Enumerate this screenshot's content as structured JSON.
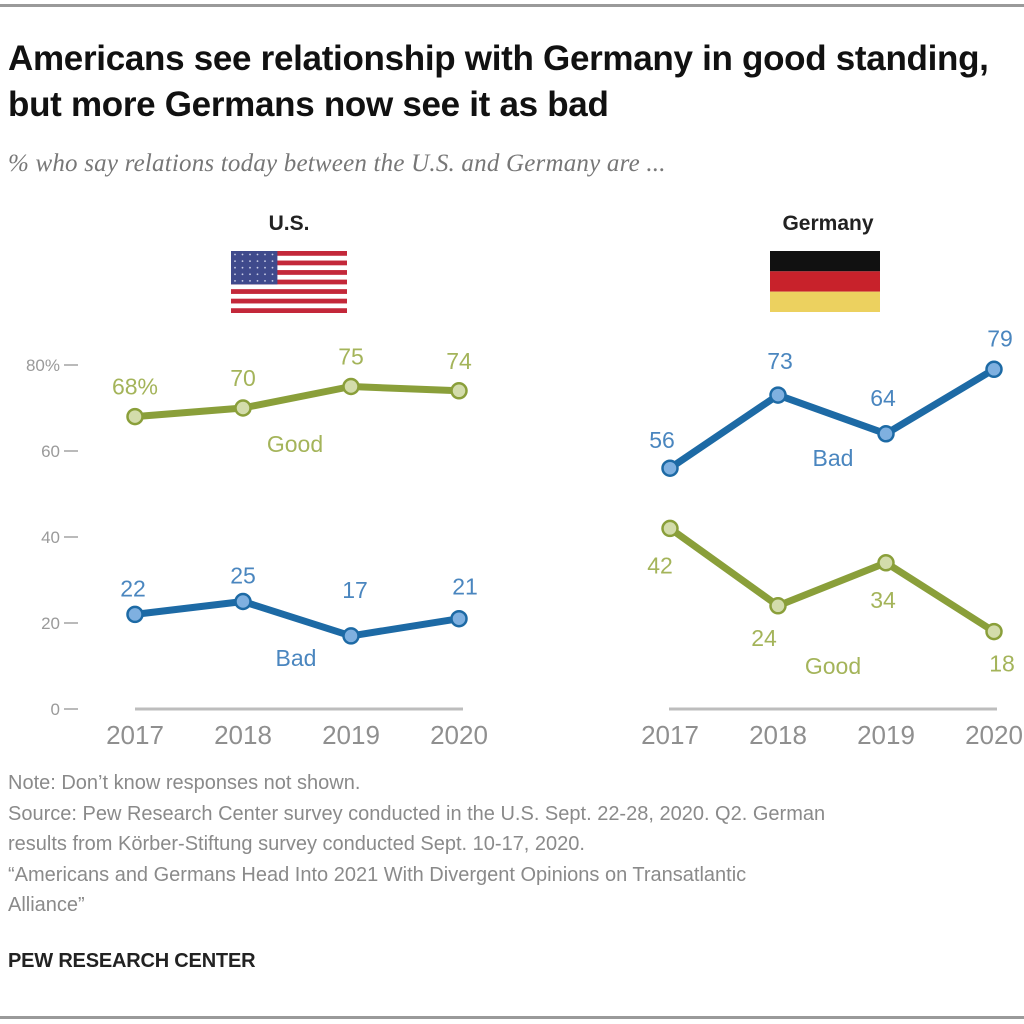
{
  "title": "Americans see relationship with Germany in good standing, but more Germans now see it as bad",
  "subtitle": "% who say relations today between the U.S. and Germany are ...",
  "colors": {
    "good_line": "#8a9f3a",
    "good_marker": "#d3dcab",
    "good_text": "#a4b45a",
    "bad_line": "#1d6aa5",
    "bad_marker": "#7fb0e0",
    "bad_text": "#4a86bf",
    "axis": "#bdbdbd",
    "flag_us_red": "#c3283a",
    "flag_us_blue": "#3f4a8c",
    "flag_de_black": "#111111",
    "flag_de_red": "#c8222b",
    "flag_de_gold": "#ecd15f"
  },
  "chart_data": [
    {
      "type": "line",
      "title": "U.S.",
      "flag_icon": "us-flag-icon",
      "x": [
        "2017",
        "2018",
        "2019",
        "2020"
      ],
      "ylim": [
        0,
        80
      ],
      "yticks": [
        "0",
        "20",
        "40",
        "60",
        "80%"
      ],
      "grid": false,
      "series": [
        {
          "name": "Good",
          "values": [
            68,
            70,
            75,
            74
          ],
          "labels": [
            "68%",
            "70",
            "75",
            "74"
          ]
        },
        {
          "name": "Bad",
          "values": [
            22,
            25,
            17,
            21
          ],
          "labels": [
            "22",
            "25",
            "17",
            "21"
          ]
        }
      ]
    },
    {
      "type": "line",
      "title": "Germany",
      "flag_icon": "germany-flag-icon",
      "x": [
        "2017",
        "2018",
        "2019",
        "2020"
      ],
      "ylim": [
        0,
        80
      ],
      "yticks": [],
      "grid": false,
      "series": [
        {
          "name": "Bad",
          "values": [
            56,
            73,
            64,
            79
          ],
          "labels": [
            "56",
            "73",
            "64",
            "79"
          ]
        },
        {
          "name": "Good",
          "values": [
            42,
            24,
            34,
            18
          ],
          "labels": [
            "42",
            "24",
            "34",
            "18"
          ]
        }
      ]
    }
  ],
  "footer": {
    "note": "Note: Don’t know responses not shown.",
    "source_line1": "Source: Pew Research Center survey conducted in the U.S. Sept. 22-28, 2020. Q2. German",
    "source_line2": "results from Körber-Stiftung survey conducted Sept. 10-17, 2020.",
    "report_line1": "“Americans and Germans Head Into 2021 With Divergent Opinions on Transatlantic",
    "report_line2": "Alliance”"
  },
  "organization": "PEW RESEARCH CENTER"
}
